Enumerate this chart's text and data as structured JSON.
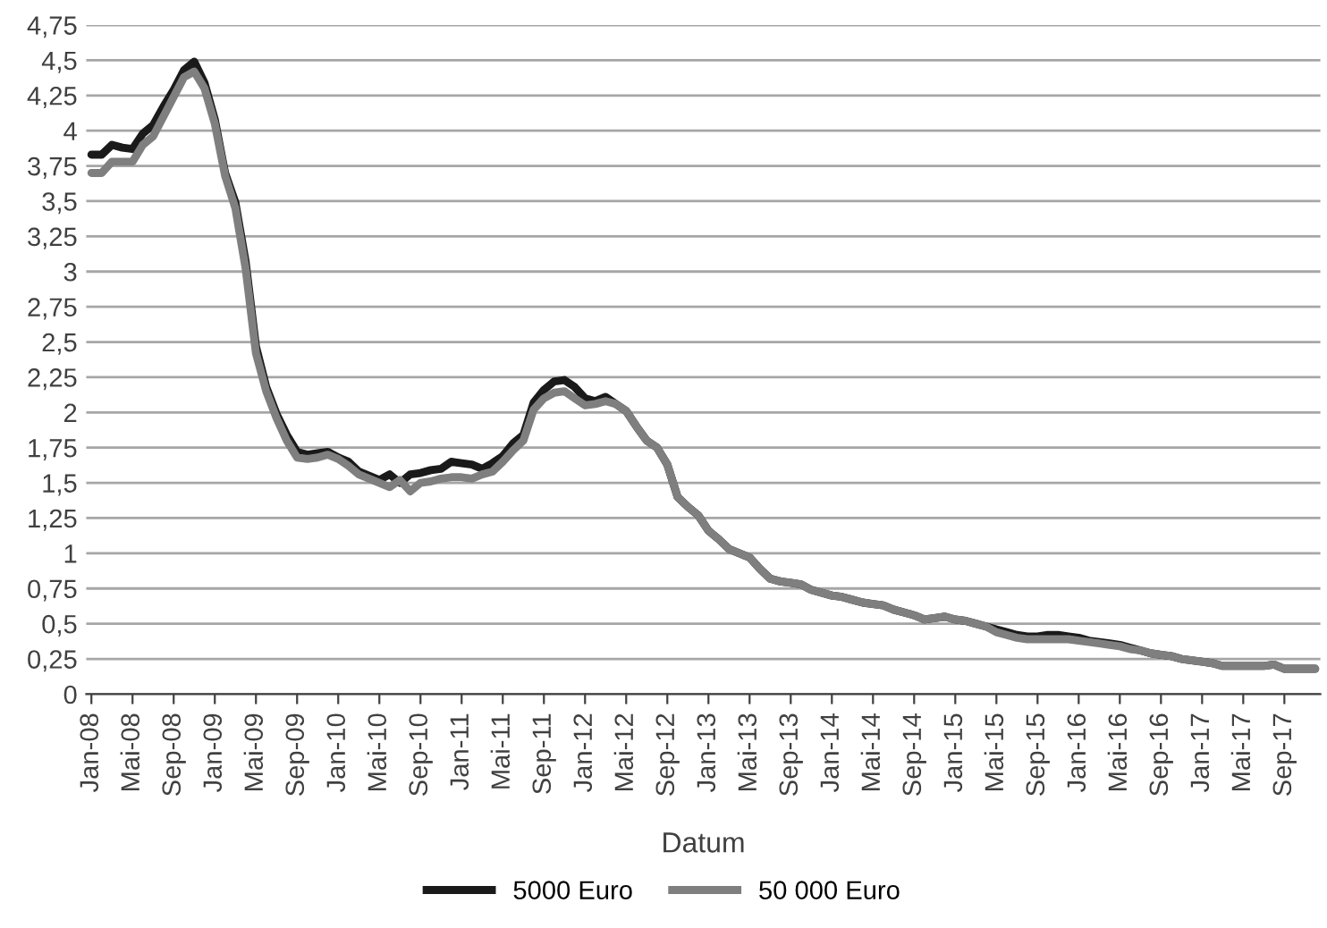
{
  "chart_data": {
    "type": "line",
    "xlabel": "Datum",
    "categories": [
      "Jan-08",
      null,
      null,
      null,
      "Mai-08",
      null,
      null,
      null,
      "Sep-08",
      null,
      null,
      null,
      "Jan-09",
      null,
      null,
      null,
      "Mai-09",
      null,
      null,
      null,
      "Sep-09",
      null,
      null,
      null,
      "Jan-10",
      null,
      null,
      null,
      "Mai-10",
      null,
      null,
      null,
      "Sep-10",
      null,
      null,
      null,
      "Jan-11",
      null,
      null,
      null,
      "Mai-11",
      null,
      null,
      null,
      "Sep-11",
      null,
      null,
      null,
      "Jan-12",
      null,
      null,
      null,
      "Mai-12",
      null,
      null,
      null,
      "Sep-12",
      null,
      null,
      null,
      "Jan-13",
      null,
      null,
      null,
      "Mai-13",
      null,
      null,
      null,
      "Sep-13",
      null,
      null,
      null,
      "Jan-14",
      null,
      null,
      null,
      "Mai-14",
      null,
      null,
      null,
      "Sep-14",
      null,
      null,
      null,
      "Jan-15",
      null,
      null,
      null,
      "Mai-15",
      null,
      null,
      null,
      "Sep-15",
      null,
      null,
      null,
      "Jan-16",
      null,
      null,
      null,
      "Mai-16",
      null,
      null,
      null,
      "Sep-16",
      null,
      null,
      null,
      "Jan-17",
      null,
      null,
      null,
      "Mai-17",
      null,
      null,
      null,
      "Sep-17",
      null,
      null,
      null
    ],
    "series": [
      {
        "name": "5000 Euro",
        "color": "#1a1a1a",
        "values": [
          3.83,
          3.83,
          3.9,
          3.88,
          3.87,
          3.98,
          4.04,
          4.17,
          4.29,
          4.43,
          4.49,
          4.34,
          4.08,
          3.7,
          3.49,
          3.07,
          2.47,
          2.18,
          1.99,
          1.84,
          1.72,
          1.7,
          1.71,
          1.72,
          1.68,
          1.65,
          1.58,
          1.55,
          1.52,
          1.56,
          1.5,
          1.56,
          1.57,
          1.59,
          1.6,
          1.65,
          1.64,
          1.63,
          1.6,
          1.64,
          1.69,
          1.78,
          1.84,
          2.07,
          2.16,
          2.22,
          2.23,
          2.18,
          2.1,
          2.08,
          2.11,
          2.06,
          2.01,
          1.9,
          1.8,
          1.75,
          1.63,
          1.4,
          1.33,
          1.27,
          1.16,
          1.1,
          1.03,
          1.0,
          0.97,
          0.89,
          0.82,
          0.8,
          0.79,
          0.78,
          0.74,
          0.72,
          0.7,
          0.69,
          0.67,
          0.65,
          0.64,
          0.63,
          0.6,
          0.58,
          0.56,
          0.53,
          0.54,
          0.55,
          0.53,
          0.52,
          0.5,
          0.48,
          0.46,
          0.44,
          0.42,
          0.41,
          0.41,
          0.42,
          0.42,
          0.41,
          0.4,
          0.38,
          0.37,
          0.36,
          0.35,
          0.33,
          0.31,
          0.29,
          0.28,
          0.27,
          0.25,
          0.24,
          0.23,
          0.22,
          0.2,
          0.2,
          0.2,
          0.2,
          0.2,
          0.21,
          0.18,
          0.18,
          0.18,
          0.18
        ]
      },
      {
        "name": "50 000 Euro",
        "color": "#7f7f7f",
        "values": [
          3.7,
          3.7,
          3.78,
          3.78,
          3.78,
          3.9,
          3.96,
          4.1,
          4.24,
          4.38,
          4.42,
          4.3,
          4.05,
          3.68,
          3.45,
          3.02,
          2.42,
          2.15,
          1.96,
          1.8,
          1.68,
          1.67,
          1.68,
          1.7,
          1.67,
          1.62,
          1.56,
          1.53,
          1.5,
          1.47,
          1.52,
          1.44,
          1.5,
          1.51,
          1.53,
          1.54,
          1.54,
          1.53,
          1.56,
          1.58,
          1.65,
          1.73,
          1.8,
          2.02,
          2.1,
          2.14,
          2.15,
          2.1,
          2.05,
          2.06,
          2.08,
          2.06,
          2.01,
          1.9,
          1.8,
          1.75,
          1.63,
          1.4,
          1.33,
          1.27,
          1.16,
          1.1,
          1.03,
          1.0,
          0.97,
          0.89,
          0.82,
          0.8,
          0.79,
          0.78,
          0.74,
          0.72,
          0.7,
          0.69,
          0.67,
          0.65,
          0.64,
          0.63,
          0.6,
          0.58,
          0.56,
          0.53,
          0.54,
          0.55,
          0.53,
          0.52,
          0.5,
          0.48,
          0.44,
          0.42,
          0.4,
          0.39,
          0.39,
          0.39,
          0.39,
          0.39,
          0.38,
          0.37,
          0.36,
          0.35,
          0.34,
          0.32,
          0.31,
          0.29,
          0.28,
          0.27,
          0.25,
          0.24,
          0.23,
          0.22,
          0.2,
          0.2,
          0.2,
          0.2,
          0.2,
          0.21,
          0.18,
          0.18,
          0.18,
          0.18
        ]
      }
    ],
    "ylim": [
      0,
      4.75
    ],
    "yticks": [
      0,
      {
        "value": 0.25,
        "label": "0,25"
      },
      {
        "value": 0.5,
        "label": "0,5"
      },
      {
        "value": 0.75,
        "label": "0,75"
      },
      1,
      {
        "value": 1.25,
        "label": "1,25"
      },
      {
        "value": 1.5,
        "label": "1,5"
      },
      {
        "value": 1.75,
        "label": "1,75"
      },
      2,
      {
        "value": 2.25,
        "label": "2,25"
      },
      {
        "value": 2.5,
        "label": "2,5"
      },
      {
        "value": 2.75,
        "label": "2,75"
      },
      3,
      {
        "value": 3.25,
        "label": "3,25"
      },
      {
        "value": 3.5,
        "label": "3,5"
      },
      {
        "value": 3.75,
        "label": "3,75"
      },
      4,
      {
        "value": 4.25,
        "label": "4,25"
      },
      {
        "value": 4.5,
        "label": "4,5"
      },
      {
        "value": 4.75,
        "label": "4,75"
      }
    ],
    "grid": "y",
    "legend": "bottom",
    "marker": "none",
    "line_style": "solid"
  }
}
